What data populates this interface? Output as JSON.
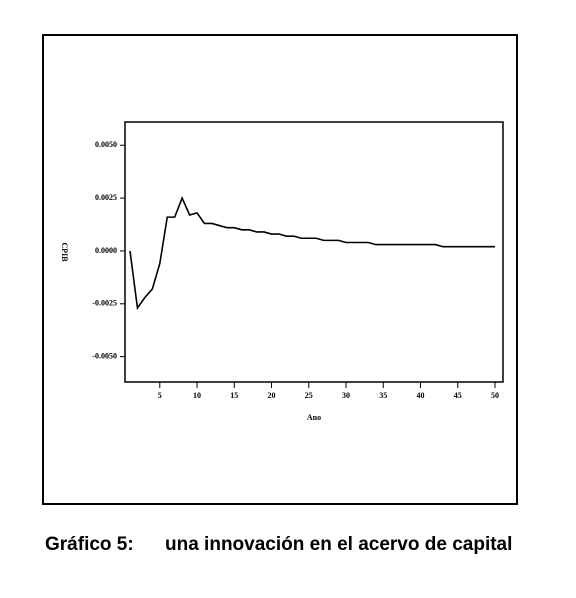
{
  "chart_data": {
    "type": "line",
    "x_label": "Ano",
    "y_label": "CPIB",
    "caption_number": "Gráfico 5:",
    "caption_text": "una innovación en el acervo de capital",
    "x": [
      1,
      2,
      3,
      4,
      5,
      6,
      7,
      8,
      9,
      10,
      11,
      12,
      13,
      14,
      15,
      16,
      17,
      18,
      19,
      20,
      21,
      22,
      23,
      24,
      25,
      26,
      27,
      28,
      29,
      30,
      31,
      32,
      33,
      34,
      35,
      36,
      37,
      38,
      39,
      40,
      41,
      42,
      43,
      44,
      45,
      46,
      47,
      48,
      49,
      50
    ],
    "series": [
      {
        "color": "#000000",
        "values": [
          0.0,
          -0.0027,
          -0.0022,
          -0.0018,
          -0.0006,
          0.0016,
          0.0016,
          0.0025,
          0.0017,
          0.0018,
          0.0013,
          0.0013,
          0.0012,
          0.0011,
          0.0011,
          0.001,
          0.001,
          0.0009,
          0.0009,
          0.0008,
          0.0008,
          0.0007,
          0.0007,
          0.0006,
          0.0006,
          0.0006,
          0.0005,
          0.0005,
          0.0005,
          0.0004,
          0.0004,
          0.0004,
          0.0004,
          0.0003,
          0.0003,
          0.0003,
          0.0003,
          0.0003,
          0.0003,
          0.0003,
          0.0003,
          0.0003,
          0.0002,
          0.0002,
          0.0002,
          0.0002,
          0.0002,
          0.0002,
          0.0002,
          0.0002
        ]
      }
    ],
    "xlim": [
      1,
      50
    ],
    "xticks": [
      5,
      10,
      15,
      20,
      25,
      30,
      35,
      40,
      45,
      50
    ],
    "ylim": [
      -0.0062,
      0.0061
    ],
    "yticks": [
      {
        "value": 0.005,
        "label": "0.0050"
      },
      {
        "value": 0.0025,
        "label": "0.0025"
      },
      {
        "value": 0,
        "label": "0.0000"
      },
      {
        "value": -0.0025,
        "label": "-0.0025"
      },
      {
        "value": -0.005,
        "label": "-0.0050"
      }
    ]
  }
}
